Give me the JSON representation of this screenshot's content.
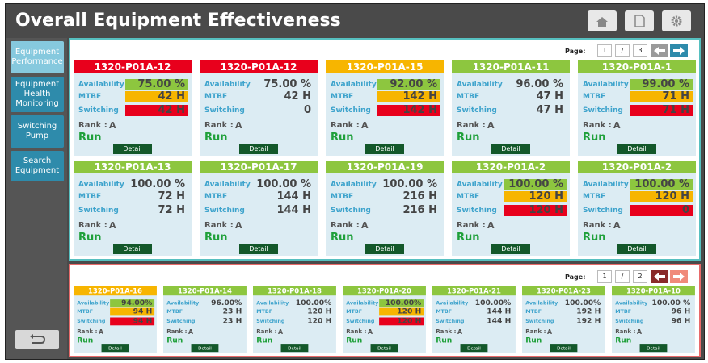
{
  "header": {
    "title": "Overall Equipment Effectiveness"
  },
  "nav": [
    "Equipment Performance",
    "Equipment Health Monitoring",
    "Switching Pump",
    "Search Equipment"
  ],
  "labels": {
    "availability": "Availability",
    "mtbf": "MTBF",
    "switching": "Switching",
    "rank": "Rank :",
    "detail": "Detail",
    "page": "Page:"
  },
  "top_panel": {
    "pager": {
      "current": "1",
      "separator": "/",
      "total": "3"
    },
    "cards": [
      {
        "id": "1320-P01A-12",
        "color": "red",
        "availability": "75.00 %",
        "availability_bg": "green",
        "mtbf": "42 H",
        "mtbf_bg": "orange",
        "switching": "42 H",
        "switching_bg": "red",
        "rank": "A",
        "status": "Run"
      },
      {
        "id": "1320-P01A-12",
        "color": "red",
        "availability": "75.00 %",
        "mtbf": "42 H",
        "switching": "0",
        "rank": "A",
        "status": "Run"
      },
      {
        "id": "1320-P01A-15",
        "color": "orange",
        "availability": "92.00 %",
        "availability_bg": "green",
        "mtbf": "142 H",
        "mtbf_bg": "orange",
        "switching": "142 H",
        "switching_bg": "red",
        "rank": "A",
        "status": "Run"
      },
      {
        "id": "1320-P01A-11",
        "color": "green",
        "availability": "96.00 %",
        "mtbf": "47 H",
        "switching": "47 H",
        "rank": "A",
        "status": "Run"
      },
      {
        "id": "1320-P01A-1",
        "color": "green",
        "availability": "99.00 %",
        "availability_bg": "green",
        "mtbf": "71 H",
        "mtbf_bg": "orange",
        "switching": "71 H",
        "switching_bg": "red",
        "rank": "A",
        "status": "Run"
      },
      {
        "id": "1320-P01A-13",
        "color": "green",
        "availability": "100.00 %",
        "mtbf": "72 H",
        "switching": "72 H",
        "rank": "A",
        "status": "Run"
      },
      {
        "id": "1320-P01A-17",
        "color": "green",
        "availability": "100.00 %",
        "mtbf": "144 H",
        "switching": "144 H",
        "rank": "A",
        "status": "Run"
      },
      {
        "id": "1320-P01A-19",
        "color": "green",
        "availability": "100.00 %",
        "mtbf": "216 H",
        "switching": "216 H",
        "rank": "A",
        "status": "Run"
      },
      {
        "id": "1320-P01A-2",
        "color": "green",
        "availability": "100.00 %",
        "availability_bg": "green",
        "mtbf": "120 H",
        "mtbf_bg": "orange",
        "switching": "120 H",
        "switching_bg": "red",
        "rank": "A",
        "status": "Run"
      },
      {
        "id": "1320-P01A-2",
        "color": "green",
        "availability": "100.00 %",
        "availability_bg": "green",
        "mtbf": "120 H",
        "mtbf_bg": "orange",
        "switching": "0",
        "switching_bg": "red",
        "rank": "A",
        "status": "Run"
      }
    ]
  },
  "bottom_panel": {
    "pager": {
      "current": "1",
      "separator": "/",
      "total": "2"
    },
    "cards": [
      {
        "id": "1320-P01A-16",
        "color": "orange",
        "availability": "94.00%",
        "availability_bg": "green",
        "mtbf": "94 H",
        "mtbf_bg": "orange",
        "switching": "94 H",
        "switching_bg": "red",
        "rank": "A",
        "status": "Run"
      },
      {
        "id": "1320-P01A-14",
        "color": "green",
        "availability": "96.00%",
        "mtbf": "23 H",
        "switching": "23 H",
        "rank": "A",
        "status": "Run"
      },
      {
        "id": "1320-P01A-18",
        "color": "green",
        "availability": "100.00%",
        "mtbf": "120 H",
        "switching": "120 H",
        "rank": "A",
        "status": "Run"
      },
      {
        "id": "1320-P01A-20",
        "color": "green",
        "availability": "100.00%",
        "availability_bg": "green",
        "mtbf": "120 H",
        "mtbf_bg": "orange",
        "switching": "120 H",
        "switching_bg": "red",
        "rank": "A",
        "status": "Run"
      },
      {
        "id": "1320-P01A-21",
        "color": "green",
        "availability": "100.00%",
        "mtbf": "144 H",
        "switching": "144 H",
        "rank": "A",
        "status": "Run"
      },
      {
        "id": "1320-P01A-23",
        "color": "green",
        "availability": "100.00%",
        "mtbf": "192 H",
        "switching": "192 H",
        "rank": "A",
        "status": "Run"
      },
      {
        "id": "1320-P01A-10",
        "color": "green",
        "availability": "100.00 %",
        "mtbf": "96 H",
        "switching": "96 H",
        "rank": "A",
        "status": "Run"
      }
    ]
  }
}
